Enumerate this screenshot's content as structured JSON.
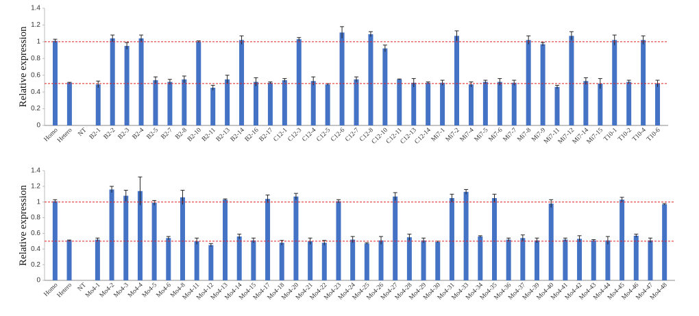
{
  "chart_data": [
    {
      "type": "bar",
      "ylabel": "Relative expression",
      "color": "#4472c4",
      "error_color": "#222",
      "reference_lines": [
        1,
        0.5
      ],
      "reference_color": "#e02020",
      "ylim": [
        0,
        1.4
      ],
      "yticks": [
        0,
        0.2,
        0.4,
        0.6,
        0.8,
        1,
        1.2,
        1.4
      ],
      "categories": [
        "Homo",
        "Hetero",
        "NT",
        "B2-1",
        "B2-2",
        "B2-3",
        "B2-4",
        "B2-5",
        "B2-7",
        "B2-8",
        "B2-10",
        "B2-11",
        "B2-13",
        "B2-14",
        "B2-16",
        "B2-17",
        "C12-1",
        "C12-3",
        "C12-4",
        "C12-5",
        "C12-6",
        "C12-7",
        "C12-8",
        "C12-10",
        "C12-11",
        "C12-13",
        "C12-14",
        "Mi7-1",
        "Mi7-2",
        "Mi7-4",
        "Mi7-5",
        "Mi7-6",
        "Mi7-7",
        "Mi7-8",
        "Mi7-9",
        "Mi7-11",
        "Mi7-12",
        "Mi7-14",
        "Mi7-15",
        "T10-1",
        "T10-2",
        "T10-4",
        "T10-6"
      ],
      "values": [
        1.01,
        0.51,
        0,
        0.49,
        1.04,
        0.95,
        1.04,
        0.54,
        0.52,
        0.55,
        1.0,
        0.45,
        0.55,
        1.02,
        0.52,
        0.51,
        0.54,
        1.03,
        0.53,
        0.49,
        1.11,
        0.55,
        1.09,
        0.92,
        0.55,
        0.51,
        0.51,
        0.51,
        1.07,
        0.49,
        0.52,
        0.52,
        0.51,
        1.02,
        0.97,
        0.46,
        1.07,
        0.53,
        0.5,
        1.02,
        0.52,
        1.02,
        0.5
      ],
      "errors": [
        0.02,
        0.005,
        0,
        0.04,
        0.04,
        0.04,
        0.04,
        0.04,
        0.03,
        0.04,
        0.01,
        0.03,
        0.05,
        0.05,
        0.05,
        0.01,
        0.02,
        0.02,
        0.05,
        0.01,
        0.07,
        0.03,
        0.03,
        0.04,
        0.005,
        0.05,
        0.01,
        0.03,
        0.06,
        0.03,
        0.02,
        0.04,
        0.03,
        0.05,
        0.02,
        0.02,
        0.05,
        0.04,
        0.06,
        0.06,
        0.02,
        0.05,
        0.04
      ]
    },
    {
      "type": "bar",
      "ylabel": "Relative expression",
      "color": "#4472c4",
      "error_color": "#222",
      "reference_lines": [
        1,
        0.5
      ],
      "reference_color": "#e02020",
      "ylim": [
        0,
        1.4
      ],
      "yticks": [
        0,
        0.2,
        0.4,
        0.6,
        0.8,
        1,
        1.2,
        1.4
      ],
      "categories": [
        "Homo",
        "Hetero",
        "NT",
        "Mo4-1",
        "Mo4-2",
        "Mo4-3",
        "Mo4-4",
        "Mo4-5",
        "Mo4-6",
        "Mo4-8",
        "Mo4-11",
        "Mo4-12",
        "Mo4-13",
        "Mo4-14",
        "Mo4-15",
        "Mo4-17",
        "Mo4-18",
        "Mo4-20",
        "Mo4-21",
        "Mo4-22",
        "Mo4-23",
        "Mo4-24",
        "Mo4-25",
        "Mo4-26",
        "Mo4-27",
        "Mo4-28",
        "Mo4-29",
        "Mo4-30",
        "Mo4-31",
        "Mo4-33",
        "Mo4-34",
        "Mo4-35",
        "Mo4-36",
        "Mo4-37",
        "Mo4-39",
        "Mo4-40",
        "Mo4-41",
        "Mo4-42",
        "Mo4-43",
        "Mo4-44",
        "Mo4-45",
        "Mo4-46",
        "Mo4-47",
        "Mo4-48"
      ],
      "values": [
        1.01,
        0.51,
        0,
        0.52,
        1.16,
        1.08,
        1.14,
        0.99,
        0.54,
        1.06,
        0.5,
        0.45,
        1.03,
        0.56,
        0.51,
        1.04,
        0.48,
        1.07,
        0.5,
        0.48,
        1.01,
        0.52,
        0.47,
        0.51,
        1.07,
        0.55,
        0.51,
        0.49,
        1.05,
        1.13,
        0.56,
        1.05,
        0.52,
        0.54,
        0.51,
        0.98,
        0.52,
        0.53,
        0.51,
        0.51,
        1.03,
        0.57,
        0.51,
        0.97
      ],
      "errors": [
        0.02,
        0.005,
        0,
        0.02,
        0.04,
        0.07,
        0.18,
        0.03,
        0.02,
        0.09,
        0.04,
        0.02,
        0.01,
        0.03,
        0.03,
        0.05,
        0.03,
        0.04,
        0.04,
        0.03,
        0.02,
        0.04,
        0.01,
        0.05,
        0.05,
        0.04,
        0.03,
        0.01,
        0.05,
        0.03,
        0.01,
        0.05,
        0.02,
        0.04,
        0.03,
        0.05,
        0.02,
        0.04,
        0.01,
        0.05,
        0.03,
        0.02,
        0.03,
        0.01
      ]
    }
  ]
}
